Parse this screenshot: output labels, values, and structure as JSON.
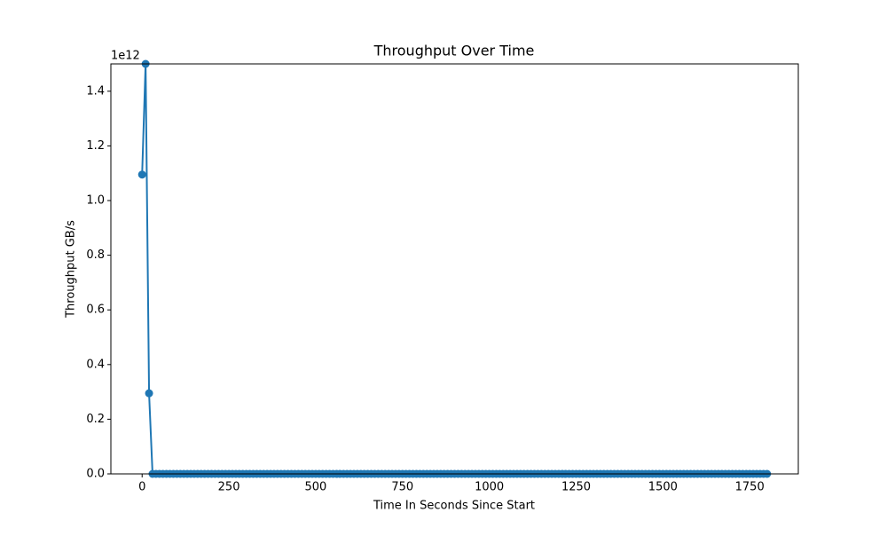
{
  "chart_data": {
    "type": "line",
    "title": "Throughput Over Time",
    "x_label": "Time In Seconds Since Start",
    "y_label": "Throughput GB/s",
    "y_offset_label": "1e12",
    "x": [
      0,
      10,
      20,
      30,
      40,
      50,
      60,
      70,
      80,
      90,
      100,
      110,
      120,
      130,
      140,
      150,
      160,
      170,
      180,
      190,
      200,
      210,
      220,
      230,
      240,
      250,
      260,
      270,
      280,
      290,
      300,
      310,
      320,
      330,
      340,
      350,
      360,
      370,
      380,
      390,
      400,
      410,
      420,
      430,
      440,
      450,
      460,
      470,
      480,
      490,
      500,
      510,
      520,
      530,
      540,
      550,
      560,
      570,
      580,
      590,
      600,
      610,
      620,
      630,
      640,
      650,
      660,
      670,
      680,
      690,
      700,
      710,
      720,
      730,
      740,
      750,
      760,
      770,
      780,
      790,
      800,
      810,
      820,
      830,
      840,
      850,
      860,
      870,
      880,
      890,
      900,
      910,
      920,
      930,
      940,
      950,
      960,
      970,
      980,
      990,
      1000,
      1010,
      1020,
      1030,
      1040,
      1050,
      1060,
      1070,
      1080,
      1090,
      1100,
      1110,
      1120,
      1130,
      1140,
      1150,
      1160,
      1170,
      1180,
      1190,
      1200,
      1210,
      1220,
      1230,
      1240,
      1250,
      1260,
      1270,
      1280,
      1290,
      1300,
      1310,
      1320,
      1330,
      1340,
      1350,
      1360,
      1370,
      1380,
      1390,
      1400,
      1410,
      1420,
      1430,
      1440,
      1450,
      1460,
      1470,
      1480,
      1490,
      1500,
      1510,
      1520,
      1530,
      1540,
      1550,
      1560,
      1570,
      1580,
      1590,
      1600,
      1610,
      1620,
      1630,
      1640,
      1650,
      1660,
      1670,
      1680,
      1690,
      1700,
      1710,
      1720,
      1730,
      1740,
      1750,
      1760,
      1770,
      1780,
      1790,
      1800
    ],
    "series": [
      {
        "name": "Throughput",
        "color": "#1f77b4",
        "values": [
          1095000000000,
          1500000000000,
          295000000000,
          0,
          0,
          0,
          0,
          0,
          0,
          0,
          0,
          0,
          0,
          0,
          0,
          0,
          0,
          0,
          0,
          0,
          0,
          0,
          0,
          0,
          0,
          0,
          0,
          0,
          0,
          0,
          0,
          0,
          0,
          0,
          0,
          0,
          0,
          0,
          0,
          0,
          0,
          0,
          0,
          0,
          0,
          0,
          0,
          0,
          0,
          0,
          0,
          0,
          0,
          0,
          0,
          0,
          0,
          0,
          0,
          0,
          0,
          0,
          0,
          0,
          0,
          0,
          0,
          0,
          0,
          0,
          0,
          0,
          0,
          0,
          0,
          0,
          0,
          0,
          0,
          0,
          0,
          0,
          0,
          0,
          0,
          0,
          0,
          0,
          0,
          0,
          0,
          0,
          0,
          0,
          0,
          0,
          0,
          0,
          0,
          0,
          0,
          0,
          0,
          0,
          0,
          0,
          0,
          0,
          0,
          0,
          0,
          0,
          0,
          0,
          0,
          0,
          0,
          0,
          0,
          0,
          0,
          0,
          0,
          0,
          0,
          0,
          0,
          0,
          0,
          0,
          0,
          0,
          0,
          0,
          0,
          0,
          0,
          0,
          0,
          0,
          0,
          0,
          0,
          0,
          0,
          0,
          0,
          0,
          0,
          0,
          0,
          0,
          0,
          0,
          0,
          0,
          0,
          0,
          0,
          0,
          0,
          0,
          0,
          0,
          0,
          0,
          0,
          0,
          0,
          0,
          0,
          0,
          0,
          0,
          0,
          0,
          0,
          0,
          0,
          0,
          0
        ]
      }
    ],
    "xlim": [
      -90,
      1890
    ],
    "xticks": [
      0,
      250,
      500,
      750,
      1000,
      1250,
      1500,
      1750
    ],
    "ylim": [
      0,
      1500000000000
    ],
    "yticks": [
      {
        "value": 0,
        "label": "0.0"
      },
      {
        "value": 200000000000,
        "label": "0.2"
      },
      {
        "value": 400000000000,
        "label": "0.4"
      },
      {
        "value": 600000000000,
        "label": "0.6"
      },
      {
        "value": 800000000000,
        "label": "0.8"
      },
      {
        "value": 1000000000000,
        "label": "1.0"
      },
      {
        "value": 1200000000000,
        "label": "1.2"
      },
      {
        "value": 1400000000000,
        "label": "1.4"
      }
    ],
    "grid": false
  }
}
